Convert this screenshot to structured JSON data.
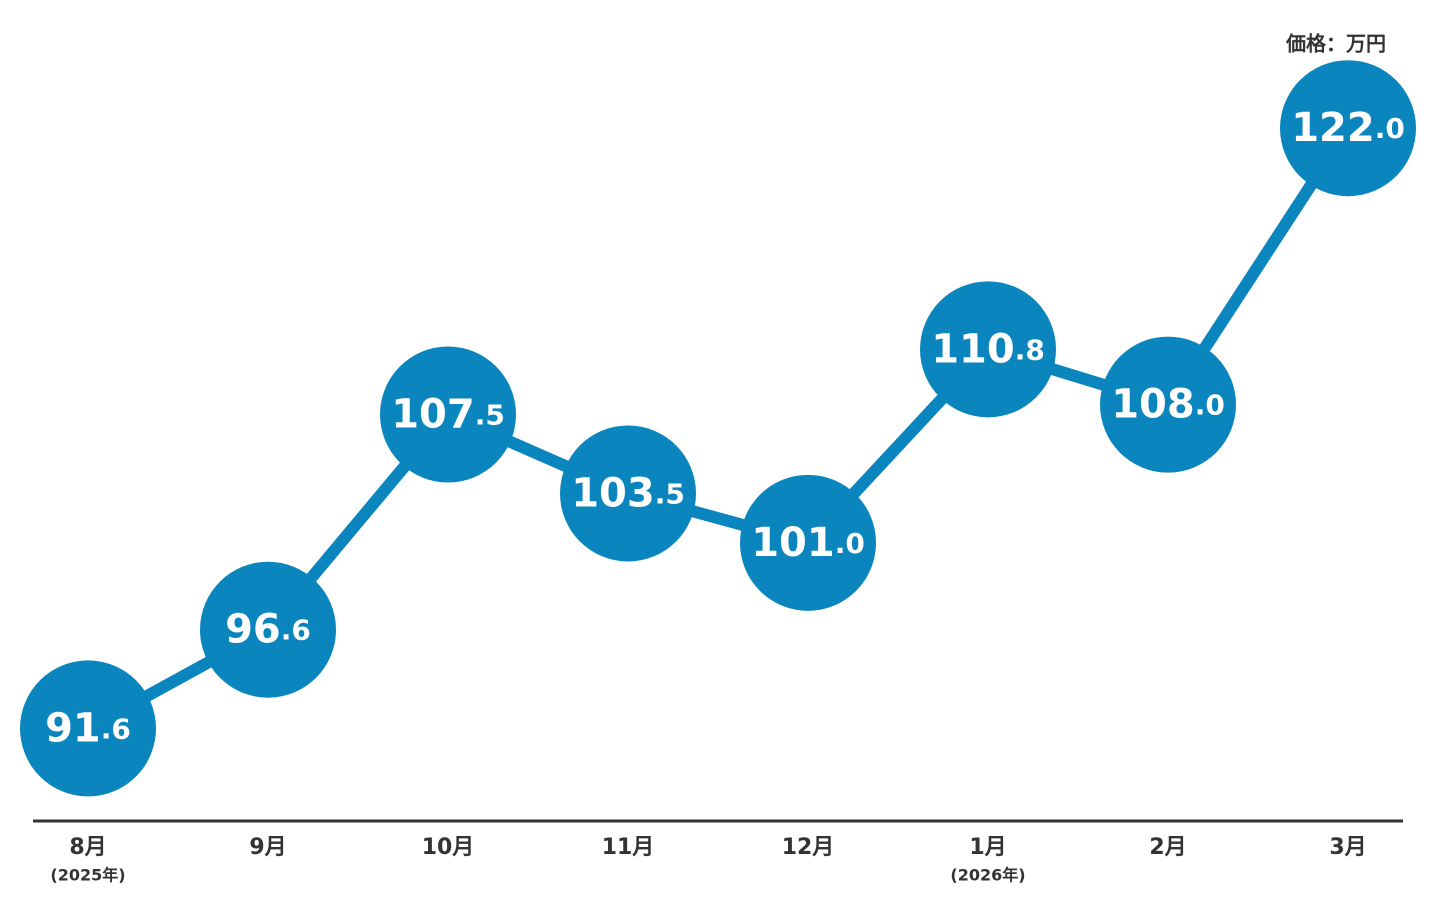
{
  "chart_data": {
    "type": "line",
    "unit_label": "価格：万円",
    "categories": [
      "8月",
      "9月",
      "10月",
      "11月",
      "12月",
      "1月",
      "2月",
      "3月"
    ],
    "category_notes": [
      "(2025年)",
      null,
      null,
      null,
      null,
      "(2026年)",
      null,
      null
    ],
    "series": [
      {
        "color": "#0a85bd",
        "values": [
          91.6,
          96.6,
          107.5,
          103.5,
          101.0,
          110.8,
          108.0,
          122.0
        ],
        "value_labels": [
          "91.6",
          "96.6",
          "107.5",
          "103.5",
          "101.0",
          "110.8",
          "108.0",
          "122.0"
        ]
      }
    ],
    "ylim": [
      90,
      125
    ]
  }
}
